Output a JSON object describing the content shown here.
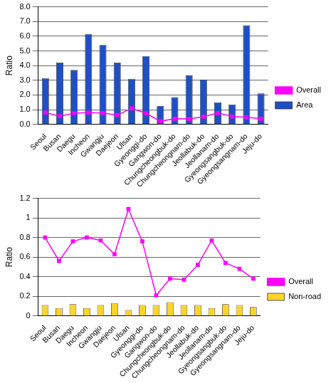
{
  "chart_data": [
    {
      "type": "bar",
      "ylabel": "Ratio",
      "categories": [
        "Seoul",
        "Busan",
        "Daegu",
        "Incheon",
        "Gwangju",
        "Daejeon",
        "Ulsan",
        "Gyeonggi-do",
        "Gangwon-do",
        "Chungcheongbuk-do",
        "Chungcheongnam-do",
        "Jeollabuk-do",
        "Jeollanam-do",
        "Gyeongsangbuk-do",
        "Gyeongsangnam-do",
        "Jeju-do"
      ],
      "series": [
        {
          "name": "Area",
          "type": "bar",
          "color": "#1f4fc4",
          "values": [
            3.15,
            4.2,
            3.7,
            6.15,
            5.4,
            4.2,
            3.1,
            4.65,
            1.25,
            1.85,
            3.35,
            3.05,
            1.5,
            1.35,
            6.75,
            2.1
          ]
        },
        {
          "name": "Overall",
          "type": "line",
          "color": "#ff00ff",
          "marker": "square",
          "values": [
            0.8,
            0.56,
            0.76,
            0.8,
            0.77,
            0.63,
            1.09,
            0.76,
            0.21,
            0.38,
            0.37,
            0.52,
            0.77,
            0.54,
            0.48,
            0.38
          ]
        }
      ],
      "ylim": [
        0,
        8
      ],
      "yticks": [
        {
          "value": 0,
          "label": "0.0"
        },
        {
          "value": 1,
          "label": "1.0"
        },
        {
          "value": 2,
          "label": "2.0"
        },
        {
          "value": 3,
          "label": "3.0"
        },
        {
          "value": 4,
          "label": "4.0"
        },
        {
          "value": 5,
          "label": "5.0"
        },
        {
          "value": 6,
          "label": "6.0"
        },
        {
          "value": 7,
          "label": "7.0"
        },
        {
          "value": 8,
          "label": "8.0"
        }
      ],
      "grid": true,
      "legend": "right"
    },
    {
      "type": "bar",
      "ylabel": "Ratio",
      "categories": [
        "Seoul",
        "Busan",
        "Daegu",
        "Incheon",
        "Gwangju",
        "Daejeon",
        "Ulsan",
        "Gyeonggi-do",
        "Gangwon-do",
        "Chungcheongbuk-do",
        "Chungcheongnam-do",
        "Jeollabuk-do",
        "Jeollanam-do",
        "Gyeongsangbuk-do",
        "Gyeongsangnam-do",
        "Jeju-do"
      ],
      "series": [
        {
          "name": "Non-road",
          "type": "bar",
          "color": "#ffd42a",
          "values": [
            0.11,
            0.08,
            0.12,
            0.08,
            0.11,
            0.13,
            0.06,
            0.11,
            0.11,
            0.14,
            0.11,
            0.11,
            0.08,
            0.12,
            0.11,
            0.09
          ]
        },
        {
          "name": "Overall",
          "type": "line",
          "color": "#ff00ff",
          "marker": "square",
          "values": [
            0.8,
            0.56,
            0.76,
            0.8,
            0.77,
            0.63,
            1.09,
            0.76,
            0.21,
            0.38,
            0.37,
            0.52,
            0.77,
            0.54,
            0.48,
            0.38
          ]
        }
      ],
      "ylim": [
        0,
        1.2
      ],
      "yticks": [
        0,
        0.2,
        0.4,
        0.6,
        0.8,
        1,
        1.2
      ],
      "grid": true,
      "legend": "right"
    }
  ]
}
